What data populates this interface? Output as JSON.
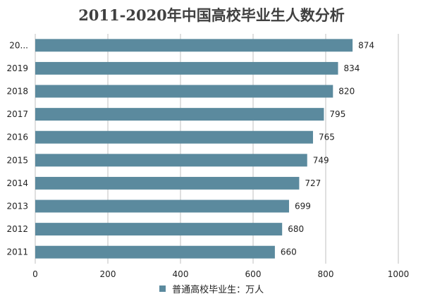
{
  "chart_data": {
    "type": "bar",
    "orientation": "horizontal",
    "title": "2011-2020年中国高校毕业生人数分析",
    "categories": [
      "20...",
      "2019",
      "2018",
      "2017",
      "2016",
      "2015",
      "2014",
      "2013",
      "2012",
      "2011"
    ],
    "series": [
      {
        "name": "普通高校毕业生：万人",
        "values": [
          874,
          834,
          820,
          795,
          765,
          749,
          727,
          699,
          680,
          660
        ]
      }
    ],
    "xlim": [
      0,
      1000
    ],
    "x_ticks": [
      0,
      200,
      400,
      600,
      800,
      1000
    ],
    "grid": "vertical",
    "legend_position": "bottom",
    "bar_color": "#5b8a9e"
  }
}
